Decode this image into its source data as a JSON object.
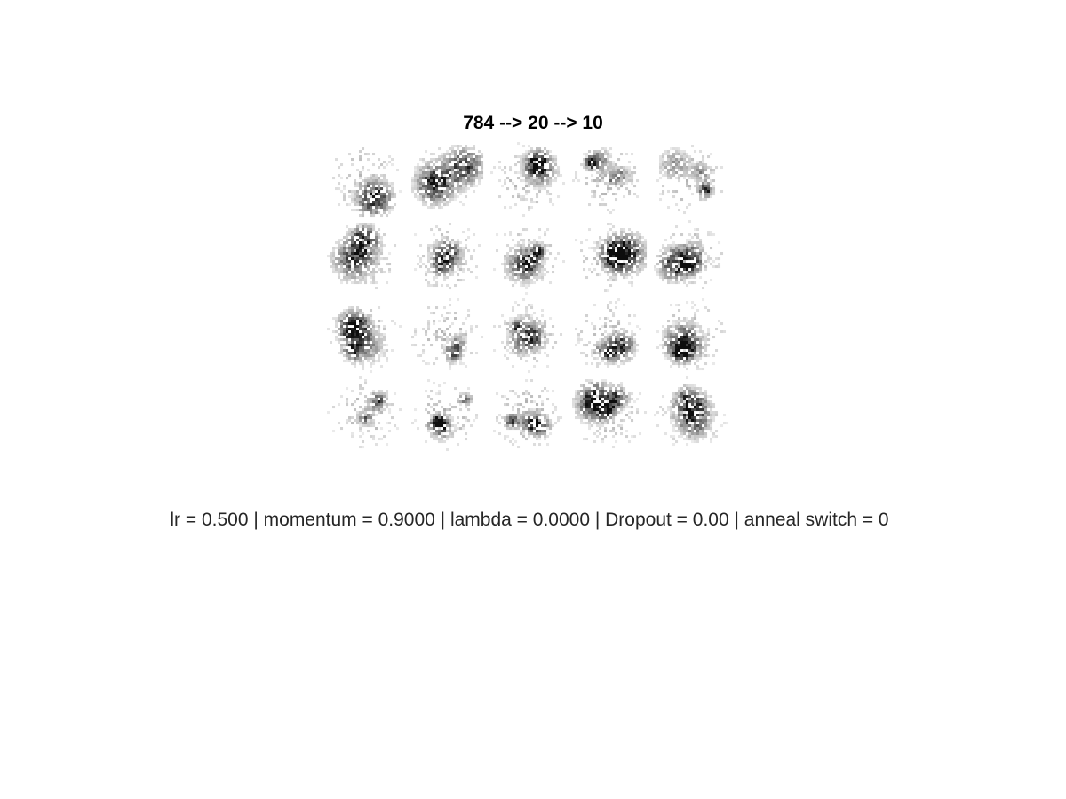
{
  "figure": {
    "title": "784 --> 20 --> 10",
    "caption": "lr = 0.500 | momentum = 0.9000 | lambda = 0.0000 | Dropout = 0.00 | anneal switch = 0"
  },
  "weight_grid": {
    "rows": 4,
    "cols": 5,
    "cell_resolution": 28,
    "colormap": "gray-inverted",
    "ink_color": "#000000",
    "background_color": "#ffffff"
  }
}
